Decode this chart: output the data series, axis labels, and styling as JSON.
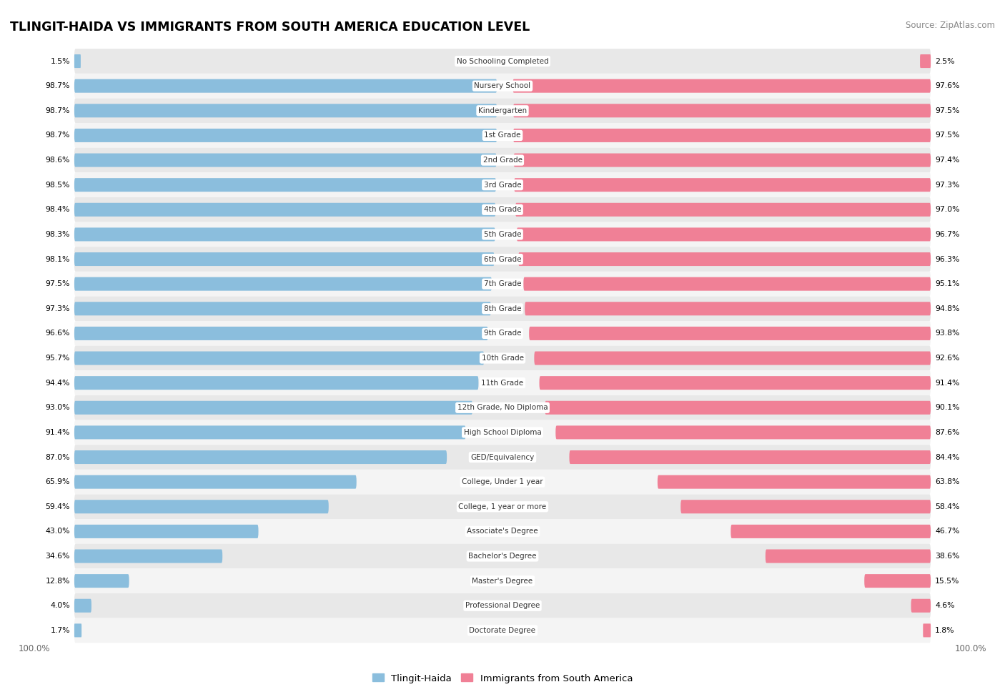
{
  "title": "TLINGIT-HAIDA VS IMMIGRANTS FROM SOUTH AMERICA EDUCATION LEVEL",
  "source": "Source: ZipAtlas.com",
  "categories": [
    "No Schooling Completed",
    "Nursery School",
    "Kindergarten",
    "1st Grade",
    "2nd Grade",
    "3rd Grade",
    "4th Grade",
    "5th Grade",
    "6th Grade",
    "7th Grade",
    "8th Grade",
    "9th Grade",
    "10th Grade",
    "11th Grade",
    "12th Grade, No Diploma",
    "High School Diploma",
    "GED/Equivalency",
    "College, Under 1 year",
    "College, 1 year or more",
    "Associate's Degree",
    "Bachelor's Degree",
    "Master's Degree",
    "Professional Degree",
    "Doctorate Degree"
  ],
  "tlingit_values": [
    1.5,
    98.7,
    98.7,
    98.7,
    98.6,
    98.5,
    98.4,
    98.3,
    98.1,
    97.5,
    97.3,
    96.6,
    95.7,
    94.4,
    93.0,
    91.4,
    87.0,
    65.9,
    59.4,
    43.0,
    34.6,
    12.8,
    4.0,
    1.7
  ],
  "immigrant_values": [
    2.5,
    97.6,
    97.5,
    97.5,
    97.4,
    97.3,
    97.0,
    96.7,
    96.3,
    95.1,
    94.8,
    93.8,
    92.6,
    91.4,
    90.1,
    87.6,
    84.4,
    63.8,
    58.4,
    46.7,
    38.6,
    15.5,
    4.6,
    1.8
  ],
  "tlingit_color": "#8BBEDD",
  "immigrant_color": "#F08096",
  "row_bg_even": "#e8e8e8",
  "row_bg_odd": "#f4f4f4",
  "legend_tlingit": "Tlingit-Haida",
  "legend_immigrant": "Immigrants from South America",
  "label_fontsize": 7.8,
  "title_fontsize": 12.5,
  "source_fontsize": 8.5
}
